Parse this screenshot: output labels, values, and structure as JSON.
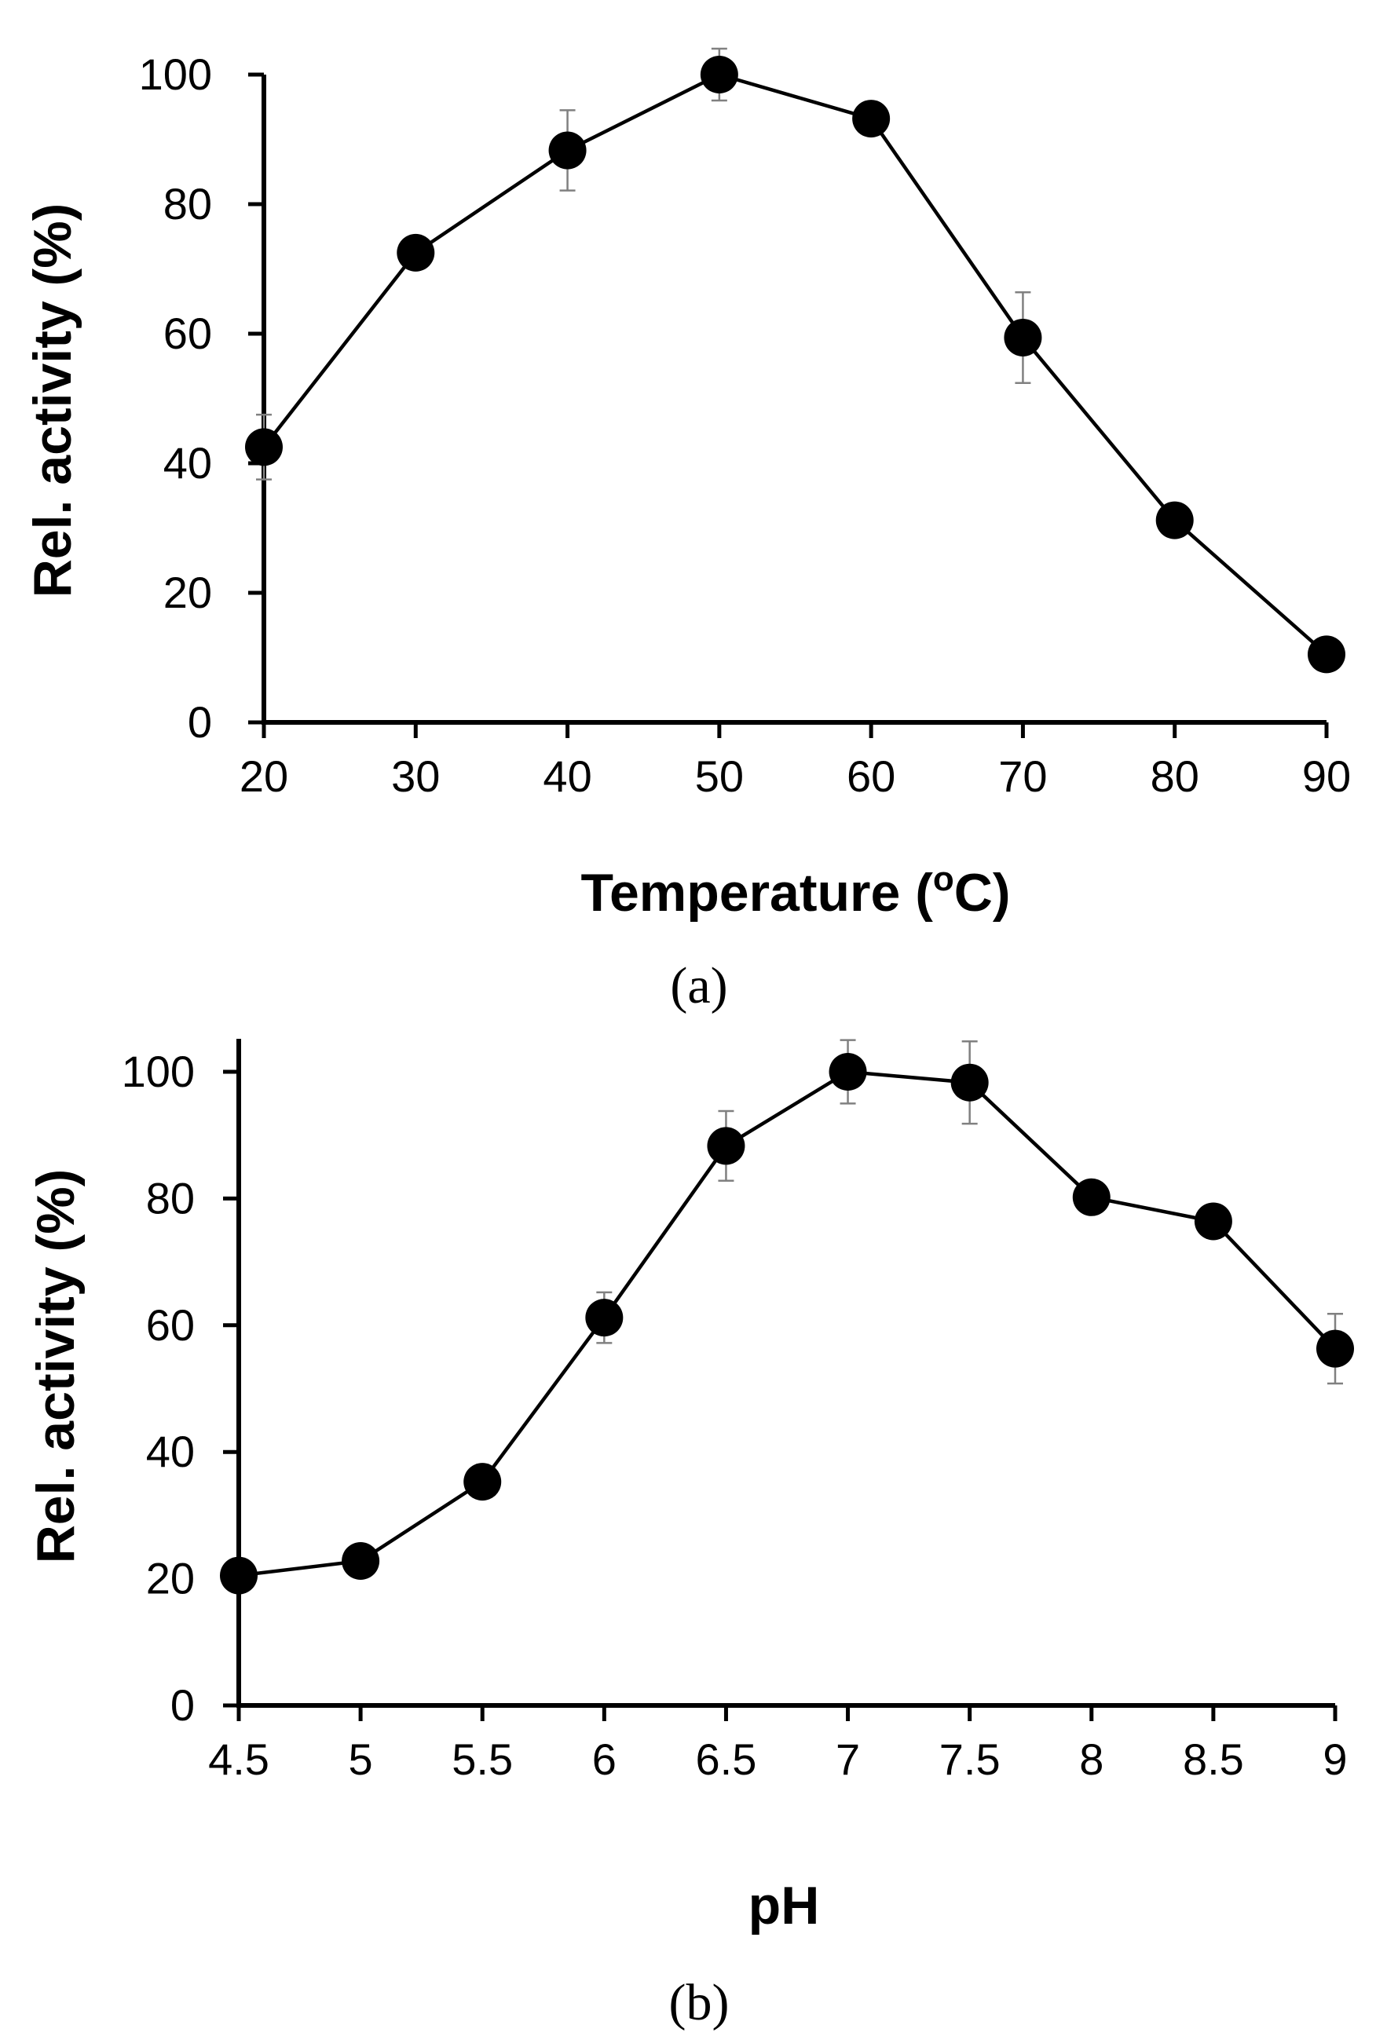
{
  "chart_data": [
    {
      "type": "line",
      "panel_label": "(a)",
      "xlabel": "Temperature (",
      "xlabel_sup": "o",
      "xlabel_end": "C)",
      "ylabel": "Rel. activity (%)",
      "x": [
        20,
        30,
        40,
        50,
        60,
        70,
        80,
        90
      ],
      "x_tick_labels": [
        "20",
        "30",
        "40",
        "50",
        "60",
        "70",
        "80",
        "90"
      ],
      "y": [
        42.5,
        72.5,
        88.3,
        100,
        93.2,
        59.4,
        31.2,
        10.5
      ],
      "y_error": [
        5.0,
        0,
        6.2,
        4.0,
        0,
        7.0,
        0,
        0
      ],
      "ylim": [
        0,
        100
      ],
      "y_ticks": [
        0,
        20,
        40,
        60,
        80,
        100
      ],
      "y_tick_labels": [
        "0",
        "20",
        "40",
        "60",
        "80",
        "100"
      ],
      "marker": "filled-circle",
      "color": "#000000"
    },
    {
      "type": "line",
      "panel_label": "(b)",
      "xlabel": "pH",
      "ylabel": "Rel. activity (%)",
      "x": [
        4.5,
        5,
        5.5,
        6,
        6.5,
        7,
        7.5,
        8,
        8.5,
        9
      ],
      "x_tick_labels": [
        "4.5",
        "5",
        "5.5",
        "6",
        "6.5",
        "7",
        "7.5",
        "8",
        "8.5",
        "9"
      ],
      "y": [
        20.5,
        22.8,
        35.3,
        61.2,
        88.3,
        100,
        98.3,
        80.2,
        76.4,
        56.3
      ],
      "y_error": [
        0,
        0,
        0,
        4.0,
        5.5,
        5.0,
        6.5,
        0,
        0,
        5.5
      ],
      "ylim": [
        0,
        105
      ],
      "y_ticks": [
        0,
        20,
        40,
        60,
        80,
        100
      ],
      "y_tick_labels": [
        "0",
        "20",
        "40",
        "60",
        "80",
        "100"
      ],
      "marker": "filled-circle",
      "color": "#000000"
    }
  ]
}
